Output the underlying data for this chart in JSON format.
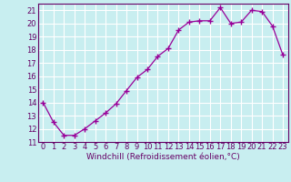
{
  "x": [
    0,
    1,
    2,
    3,
    4,
    5,
    6,
    7,
    8,
    9,
    10,
    11,
    12,
    13,
    14,
    15,
    16,
    17,
    18,
    19,
    20,
    21,
    22,
    23
  ],
  "y": [
    14.0,
    12.5,
    11.5,
    11.5,
    12.0,
    12.6,
    13.2,
    13.9,
    14.9,
    15.9,
    16.5,
    17.5,
    18.1,
    19.5,
    20.1,
    20.2,
    20.2,
    21.2,
    20.0,
    20.1,
    21.0,
    20.9,
    19.8,
    17.6
  ],
  "line_color": "#990099",
  "marker": "+",
  "markersize": 4,
  "linewidth": 0.9,
  "xlabel": "Windchill (Refroidissement éolien,°C)",
  "xlabel_fontsize": 6.5,
  "bg_color": "#c8eef0",
  "grid_color": "#ffffff",
  "tick_color": "#660066",
  "tick_fontsize": 6,
  "xlim": [
    -0.5,
    23.5
  ],
  "ylim": [
    11,
    21.5
  ],
  "yticks": [
    11,
    12,
    13,
    14,
    15,
    16,
    17,
    18,
    19,
    20,
    21
  ],
  "xticks": [
    0,
    1,
    2,
    3,
    4,
    5,
    6,
    7,
    8,
    9,
    10,
    11,
    12,
    13,
    14,
    15,
    16,
    17,
    18,
    19,
    20,
    21,
    22,
    23
  ]
}
